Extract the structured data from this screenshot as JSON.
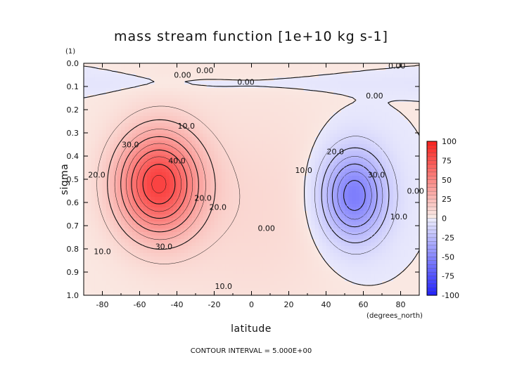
{
  "chart_data": {
    "type": "contour",
    "title": "mass stream function [1e+10 kg s-1]",
    "xlabel": "latitude",
    "x_units": "(degrees_north)",
    "ylabel": "sigma",
    "y_units": "(1)",
    "xlim": [
      -90,
      90
    ],
    "ylim": [
      0.0,
      1.0
    ],
    "y_inverted": true,
    "xticks": [
      "-80",
      "-60",
      "-40",
      "-20",
      "0",
      "20",
      "40",
      "60",
      "80"
    ],
    "yticks": [
      "0.0",
      "0.1",
      "0.2",
      "0.3",
      "0.4",
      "0.5",
      "0.6",
      "0.7",
      "0.8",
      "0.9",
      "1.0"
    ],
    "contour_interval_text": "CONTOUR INTERVAL = 5.000E+00",
    "contour_interval": 5,
    "colorbar": {
      "ticks": [
        "100",
        "75",
        "50",
        "25",
        "0",
        "-25",
        "-50",
        "-75",
        "-100"
      ],
      "range": [
        -100,
        100
      ],
      "positive_color": "#e83838",
      "negative_color": "#3a3aee"
    },
    "cells": [
      {
        "sign": "positive",
        "center_lat": -50,
        "center_sigma": 0.52,
        "max": 45
      },
      {
        "sign": "negative",
        "center_lat": 55,
        "center_sigma": 0.57,
        "min": -35
      }
    ],
    "contour_labels": [
      {
        "text": "0.00",
        "lat": -25,
        "sigma": 0.03
      },
      {
        "text": "0.00",
        "lat": -37,
        "sigma": 0.05
      },
      {
        "text": "0.00",
        "lat": -3,
        "sigma": 0.08
      },
      {
        "text": "0.00",
        "lat": 78,
        "sigma": 0.01
      },
      {
        "text": "0.00",
        "lat": 66,
        "sigma": 0.14
      },
      {
        "text": "10.0",
        "lat": -35,
        "sigma": 0.27
      },
      {
        "text": "30.0",
        "lat": -65,
        "sigma": 0.35
      },
      {
        "text": "40.0",
        "lat": -40,
        "sigma": 0.42
      },
      {
        "text": "20.0",
        "lat": -83,
        "sigma": 0.48
      },
      {
        "text": "20.0",
        "lat": -26,
        "sigma": 0.58
      },
      {
        "text": "20.0",
        "lat": -18,
        "sigma": 0.62
      },
      {
        "text": "30.0",
        "lat": -47,
        "sigma": 0.79
      },
      {
        "text": "10.0",
        "lat": -80,
        "sigma": 0.81
      },
      {
        "text": "10.0",
        "lat": -15,
        "sigma": 0.96
      },
      {
        "text": "0.00",
        "lat": 8,
        "sigma": 0.71
      },
      {
        "text": "10.0",
        "lat": 28,
        "sigma": 0.46
      },
      {
        "text": "20.0",
        "lat": 45,
        "sigma": 0.38
      },
      {
        "text": "30.0",
        "lat": 67,
        "sigma": 0.48
      },
      {
        "text": "10.0",
        "lat": 79,
        "sigma": 0.66
      },
      {
        "text": "0.00",
        "lat": 88,
        "sigma": 0.55
      }
    ]
  }
}
